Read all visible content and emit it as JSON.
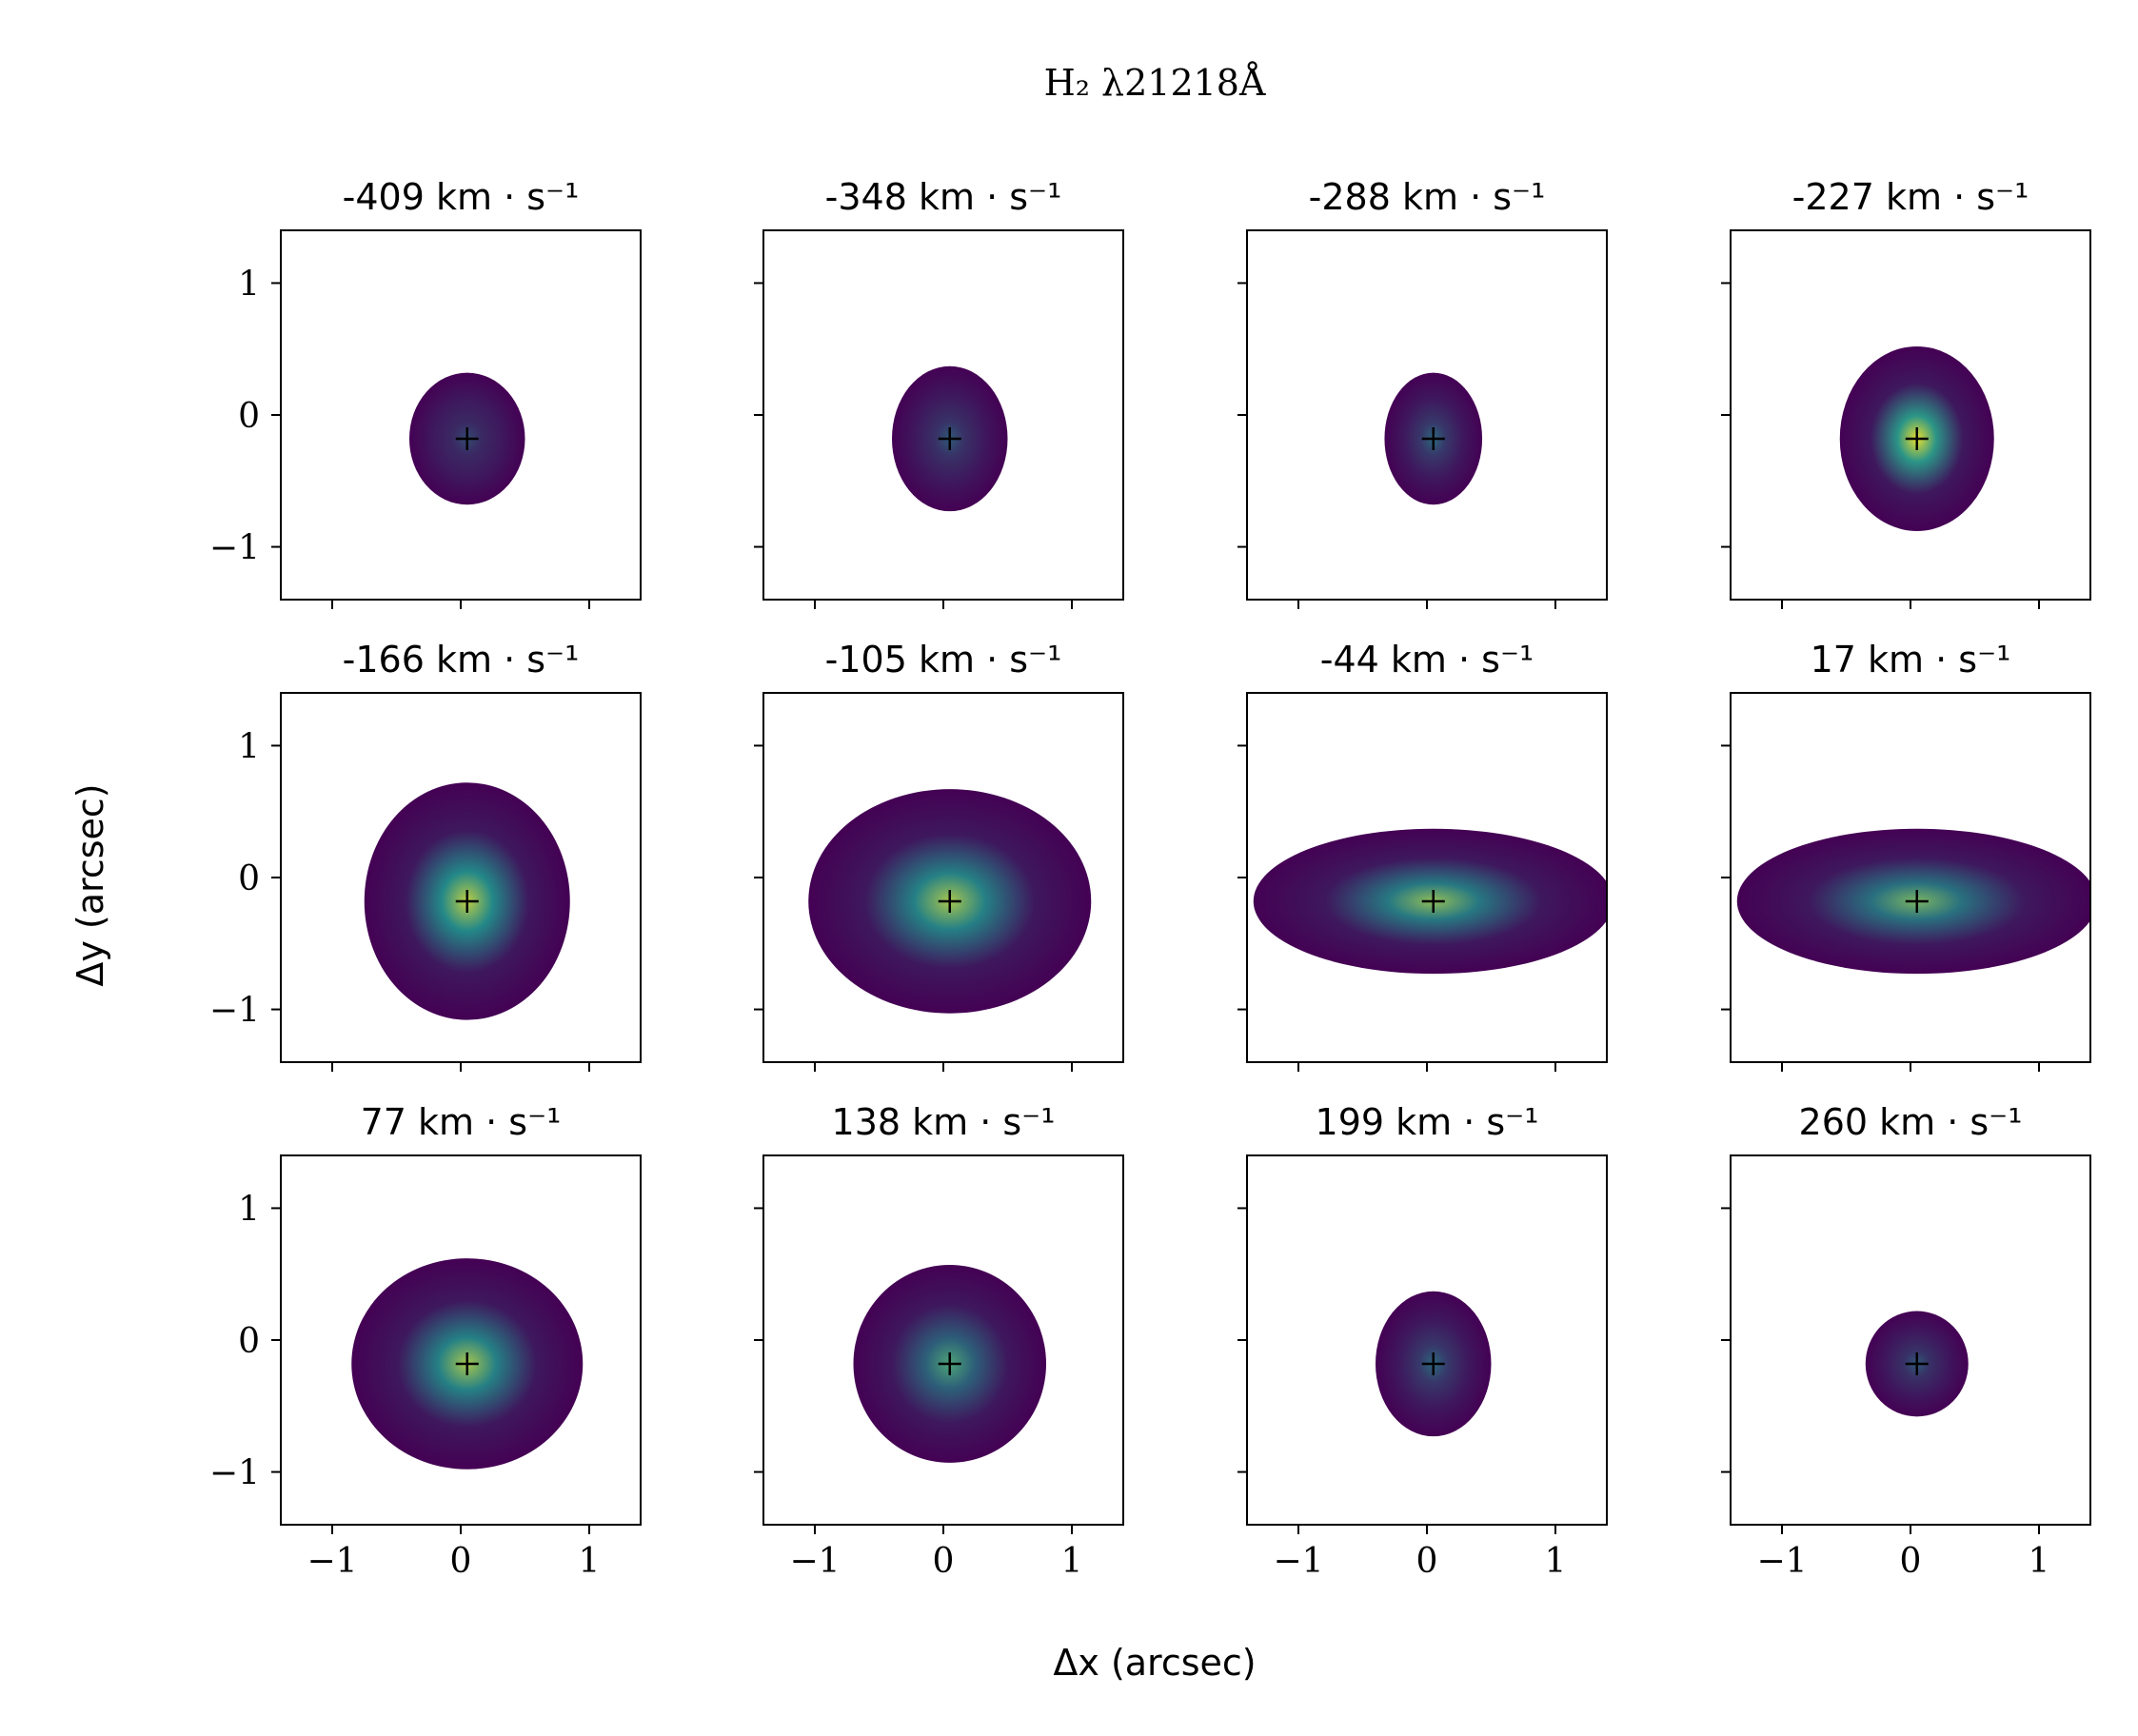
{
  "figure": {
    "title": "H₂ λ21218Å",
    "xlabel": "Δx (arcsec)",
    "ylabel": "Δy (arcsec)",
    "panel_unit": "km · s⁻¹",
    "colormap": "viridis",
    "colors": {
      "low": "#440154",
      "mid": "#21918c",
      "high": "#fde725",
      "marker": "#000000"
    }
  },
  "chart_data": {
    "type": "heatmap",
    "title": "H₂ λ21218Å",
    "xlabel": "Δx (arcsec)",
    "ylabel": "Δy (arcsec)",
    "xlim": [
      -1.4,
      1.4
    ],
    "ylim": [
      -1.4,
      1.4
    ],
    "xticks": [
      -1,
      0,
      1
    ],
    "yticks": [
      -1,
      0,
      1
    ],
    "xtick_labels": [
      "−1",
      "0",
      "1"
    ],
    "ytick_labels": [
      "1",
      "0",
      "−1"
    ],
    "marker": {
      "symbol": "+",
      "x": 0.05,
      "y": -0.18
    },
    "grid": false,
    "panels": [
      {
        "velocity": "-409",
        "peak": 0.25,
        "extent_x": 0.45,
        "extent_y": 0.5
      },
      {
        "velocity": "-348",
        "peak": 0.3,
        "extent_x": 0.45,
        "extent_y": 0.55
      },
      {
        "velocity": "-288",
        "peak": 0.35,
        "extent_x": 0.38,
        "extent_y": 0.5
      },
      {
        "velocity": "-227",
        "peak": 0.95,
        "extent_x": 0.6,
        "extent_y": 0.7
      },
      {
        "velocity": "-166",
        "peak": 0.85,
        "extent_x": 0.8,
        "extent_y": 0.9
      },
      {
        "velocity": "-105",
        "peak": 0.8,
        "extent_x": 1.1,
        "extent_y": 0.85
      },
      {
        "velocity": "-44",
        "peak": 0.75,
        "extent_x": 1.4,
        "extent_y": 0.55
      },
      {
        "velocity": "17",
        "peak": 0.7,
        "extent_x": 1.4,
        "extent_y": 0.55
      },
      {
        "velocity": "77",
        "peak": 0.8,
        "extent_x": 0.9,
        "extent_y": 0.8
      },
      {
        "velocity": "138",
        "peak": 0.6,
        "extent_x": 0.75,
        "extent_y": 0.75
      },
      {
        "velocity": "199",
        "peak": 0.35,
        "extent_x": 0.45,
        "extent_y": 0.55
      },
      {
        "velocity": "260",
        "peak": 0.3,
        "extent_x": 0.4,
        "extent_y": 0.4
      }
    ]
  }
}
